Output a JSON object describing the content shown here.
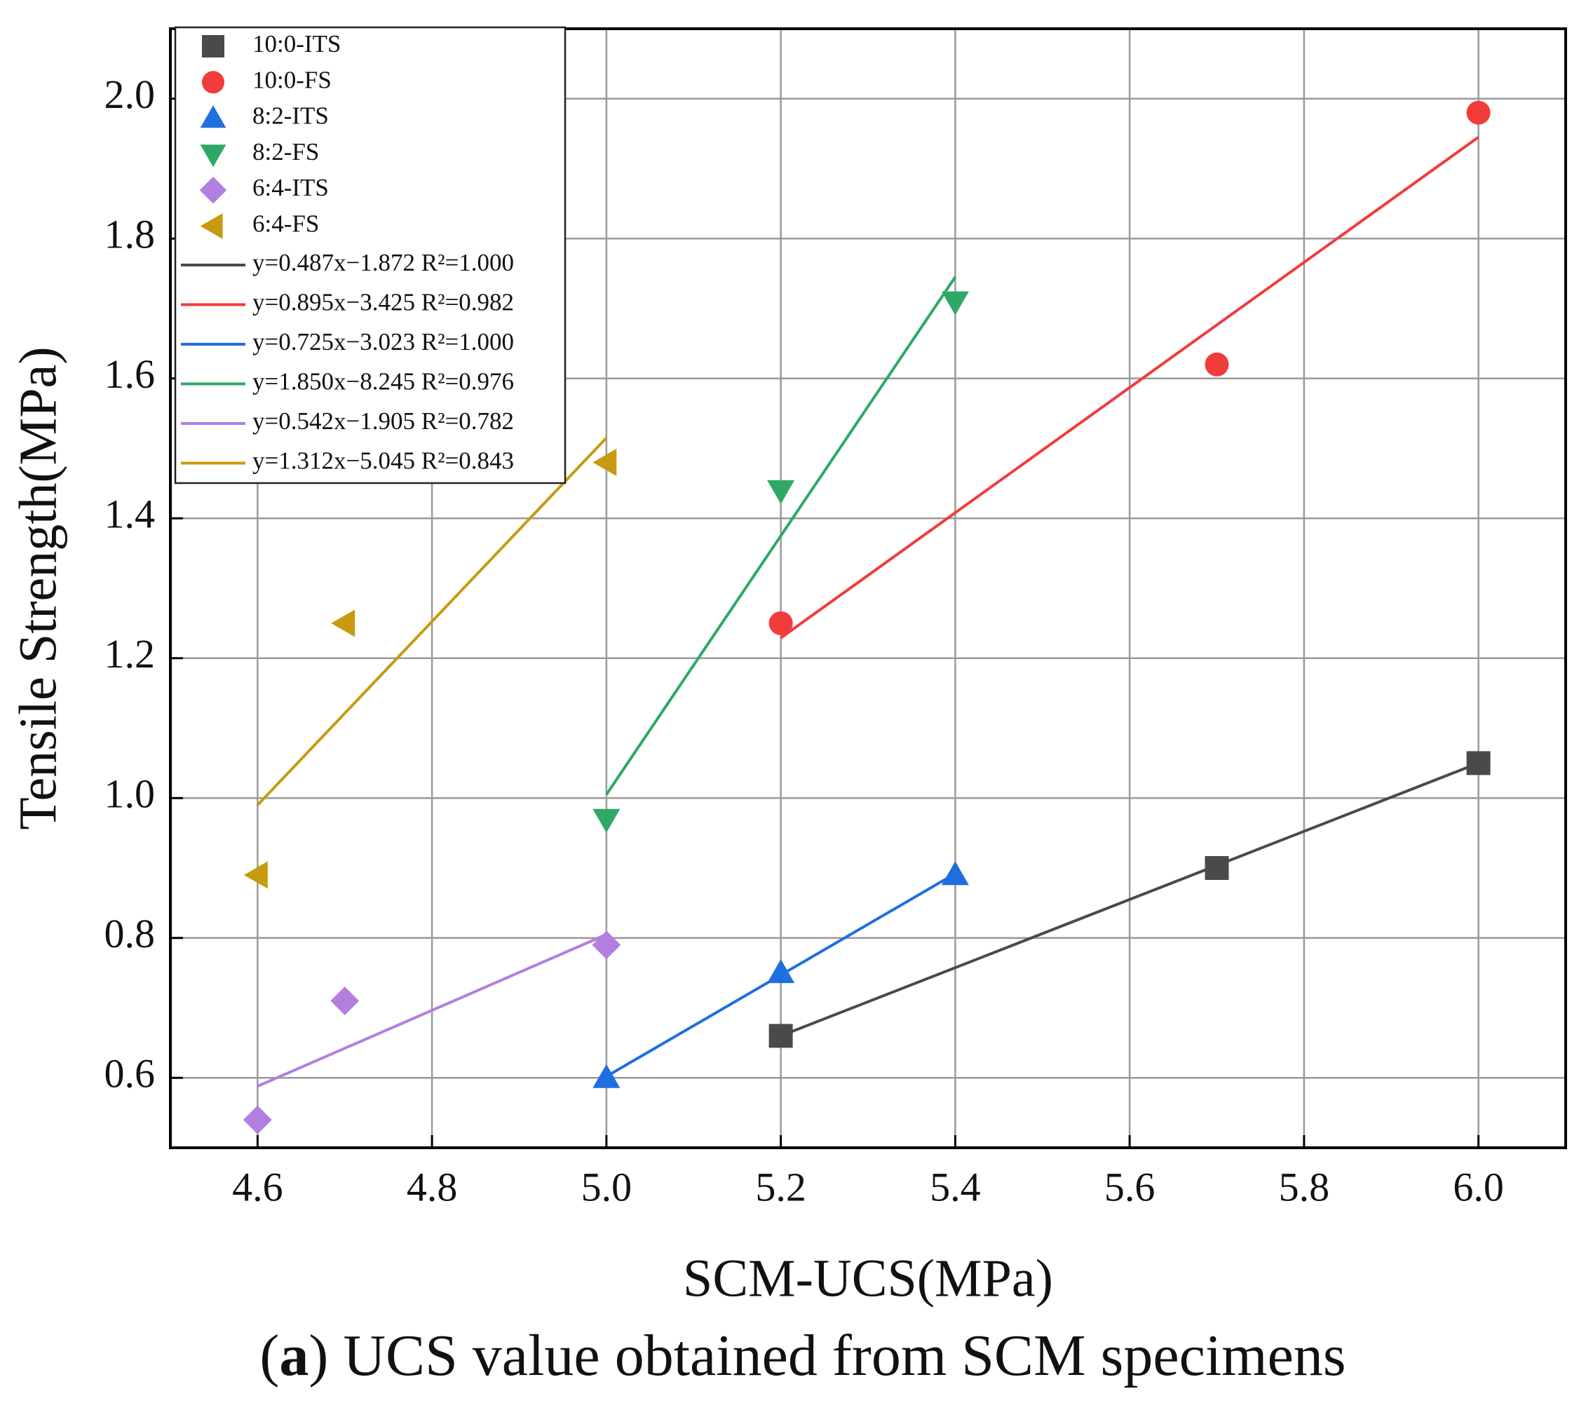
{
  "chart_data": {
    "type": "scatter",
    "x_label": "SCM-UCS(MPa)",
    "y_label": "Tensile Strength(MPa)",
    "caption": [
      "(",
      "a",
      ") UCS value obtained from SCM specimens"
    ],
    "xlim": [
      4.5,
      6.1
    ],
    "ylim": [
      0.5,
      2.1
    ],
    "xticks": [
      4.6,
      4.8,
      {
        "value": 5,
        "label": "5.0"
      },
      5.2,
      5.4,
      5.6,
      5.8,
      {
        "value": 6,
        "label": "6.0"
      }
    ],
    "yticks": [
      0.6,
      0.8,
      {
        "value": 1,
        "label": "1.0"
      },
      1.2,
      1.4,
      1.6,
      1.8,
      {
        "value": 2,
        "label": "2.0"
      }
    ],
    "grid": true,
    "legend": "top-left",
    "series": [
      {
        "name": "10:0-ITS",
        "color": "#4a4a4a",
        "marker": "square",
        "x": [
          5.2,
          5.7,
          6.0
        ],
        "values": [
          0.66,
          0.9,
          1.05
        ]
      },
      {
        "name": "10:0-FS",
        "color": "#f03c3c",
        "marker": "circle",
        "x": [
          5.2,
          5.7,
          6.0
        ],
        "values": [
          1.25,
          1.62,
          1.98
        ]
      },
      {
        "name": "8:2-ITS",
        "color": "#1f6fe0",
        "marker": "triangle-up",
        "x": [
          5.0,
          5.2,
          5.4
        ],
        "values": [
          0.6,
          0.75,
          0.89
        ]
      },
      {
        "name": "8:2-FS",
        "color": "#2fa866",
        "marker": "triangle-down",
        "x": [
          5.0,
          5.2,
          5.4
        ],
        "values": [
          0.97,
          1.44,
          1.71
        ]
      },
      {
        "name": "6:4-ITS",
        "color": "#b07fe0",
        "marker": "diamond",
        "x": [
          4.6,
          4.7,
          5.0
        ],
        "values": [
          0.54,
          0.71,
          0.79
        ]
      },
      {
        "name": "6:4-FS",
        "color": "#c89a10",
        "marker": "triangle-left",
        "x": [
          4.6,
          4.7,
          5.0
        ],
        "values": [
          0.89,
          1.25,
          1.48
        ]
      }
    ],
    "fits": [
      {
        "name": "y=0.487x−1.872 R²=1.000",
        "color": "#4a4a4a",
        "x": [
          5.2,
          6.0
        ],
        "values": [
          0.66,
          1.05
        ]
      },
      {
        "name": "y=0.895x−3.425 R²=0.982",
        "color": "#f03c3c",
        "x": [
          5.2,
          6.0
        ],
        "values": [
          1.229,
          1.945
        ]
      },
      {
        "name": "y=0.725x−3.023 R²=1.000",
        "color": "#1f6fe0",
        "x": [
          5.0,
          5.4
        ],
        "values": [
          0.602,
          0.892
        ]
      },
      {
        "name": "y=1.850x−8.245 R²=0.976",
        "color": "#2fa866",
        "x": [
          5.0,
          5.4
        ],
        "values": [
          1.005,
          1.745
        ]
      },
      {
        "name": "y=0.542x−1.905 R²=0.782",
        "color": "#b07fe0",
        "x": [
          4.6,
          5.0
        ],
        "values": [
          0.588,
          0.805
        ]
      },
      {
        "name": "y=1.312x−5.045 R²=0.843",
        "color": "#c89a10",
        "x": [
          4.6,
          5.0
        ],
        "values": [
          0.99,
          1.515
        ]
      }
    ]
  }
}
